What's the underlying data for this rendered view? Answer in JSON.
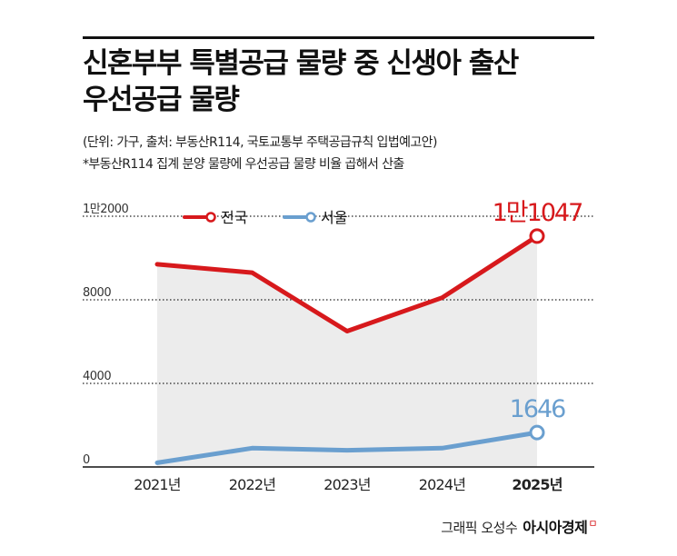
{
  "title_line1": "신혼부부 특별공급 물량 중 신생아 출산",
  "title_line2": "우선공급 물량",
  "note1": "(단위: 가구, 출처: 부동산R114, 국토교통부 주택공급규칙 입법예고안)",
  "note2": "*부동산R114 집계 분양 물량에 우선공급 물량 비율 곱해서 산출",
  "credit": "그래픽 오성수",
  "brand": "아시아경제",
  "brand_mark": "ㅁ",
  "colors": {
    "national": "#d7191c",
    "seoul": "#6a9fcf",
    "area_fill": "#ececec",
    "axis": "#111111"
  },
  "chart_data": {
    "type": "line",
    "title": "신혼부부 특별공급 물량 중 신생아 출산 우선공급 물량",
    "categories": [
      "2021년",
      "2022년",
      "2023년",
      "2024년",
      "2025년"
    ],
    "highlight_category": "2025년",
    "y_ticks": [
      {
        "value": 0,
        "label": "0"
      },
      {
        "value": 4000,
        "label": "4000"
      },
      {
        "value": 8000,
        "label": "8000"
      },
      {
        "value": 12000,
        "label": "1만2000"
      }
    ],
    "ylim": [
      0,
      12000
    ],
    "grid": "dotted",
    "legend": "top-left",
    "series": [
      {
        "name": "전국",
        "color": "#d7191c",
        "values": [
          9700,
          9300,
          6500,
          8100,
          11047
        ],
        "end_label": "1만1047",
        "area": true
      },
      {
        "name": "서울",
        "color": "#6a9fcf",
        "values": [
          200,
          900,
          800,
          900,
          1646
        ],
        "end_label": "1646",
        "area": false
      }
    ]
  }
}
